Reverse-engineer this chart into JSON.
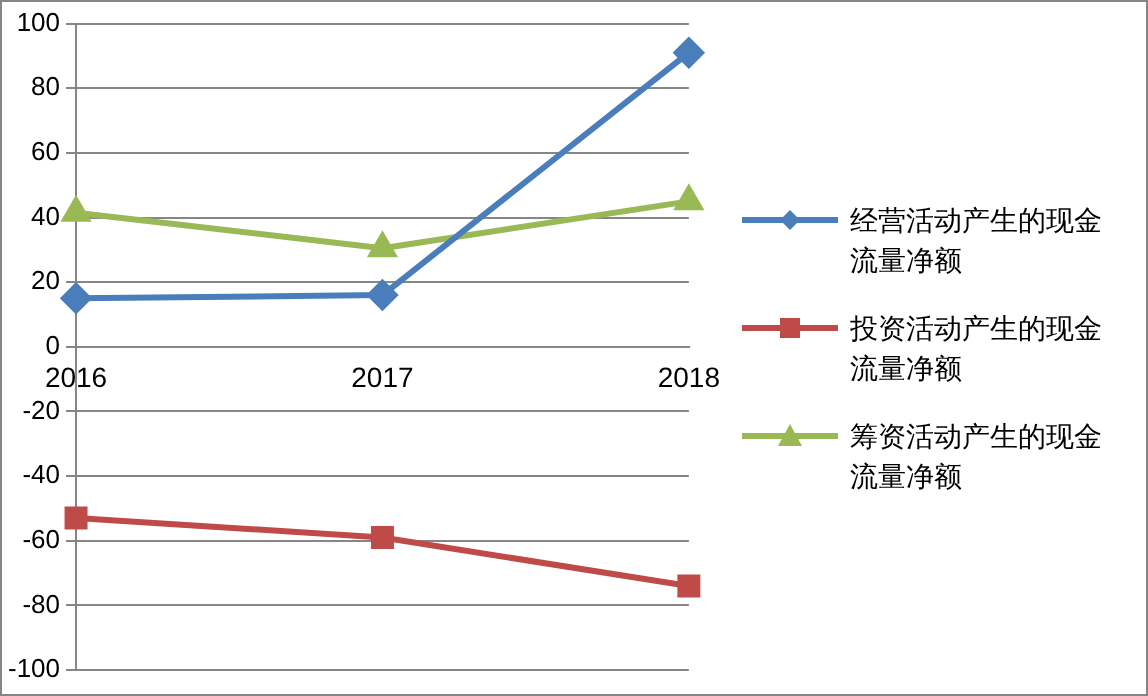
{
  "chart_data": {
    "type": "line",
    "categories": [
      "2016",
      "2017",
      "2018"
    ],
    "series": [
      {
        "name": "经营活动产生的现金流量净额",
        "color": "#4a7ebb",
        "marker": "diamond",
        "values": [
          15,
          16,
          91
        ]
      },
      {
        "name": "投资活动产生的现金流量净额",
        "color": "#be4b48",
        "marker": "square",
        "values": [
          -53,
          -59,
          -74
        ]
      },
      {
        "name": "筹资活动产生的现金流量净额",
        "color": "#98b954",
        "marker": "triangle",
        "values": [
          41.5,
          30.5,
          45
        ]
      }
    ],
    "ylim": [
      -100,
      100
    ],
    "yticks": [
      -100,
      -80,
      -60,
      -40,
      -20,
      0,
      20,
      40,
      60,
      80,
      100
    ],
    "grid": "y",
    "legend": "right",
    "line_style": "solid"
  }
}
